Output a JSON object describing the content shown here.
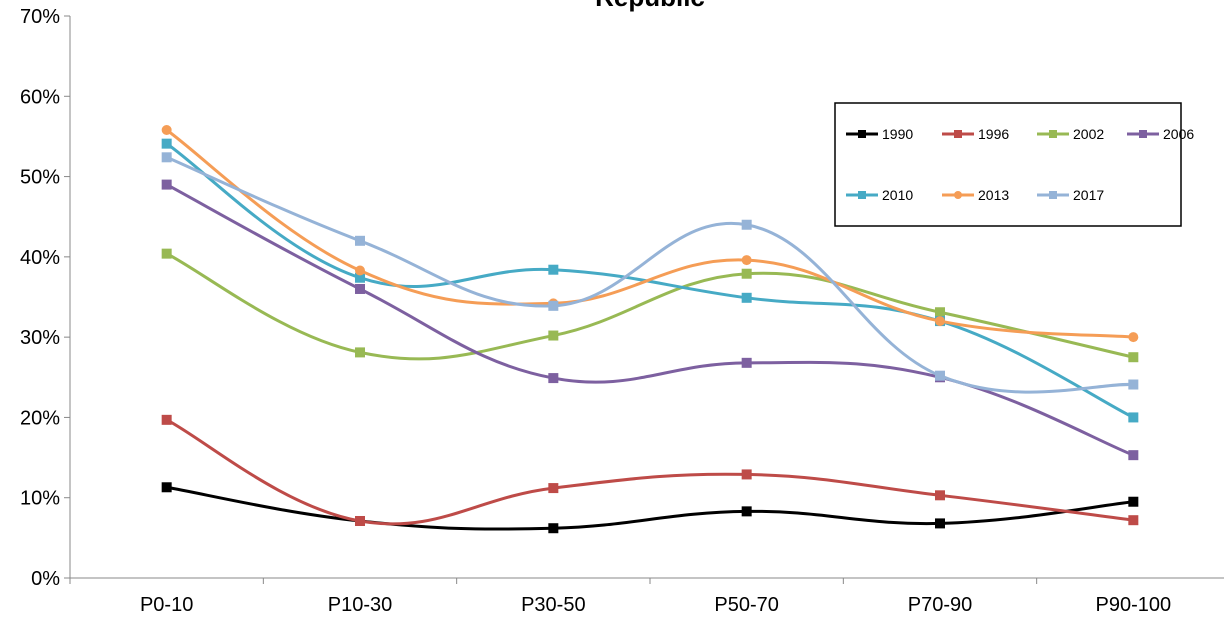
{
  "chart_data": {
    "type": "line",
    "title": "Republic",
    "categories": [
      "P0-10",
      "P10-30",
      "P30-50",
      "P50-70",
      "P70-90",
      "P90-100"
    ],
    "ylim": [
      0,
      70
    ],
    "yticks": [
      0,
      10,
      20,
      30,
      40,
      50,
      60,
      70
    ],
    "ytick_labels": [
      "0%",
      "10%",
      "20%",
      "30%",
      "40%",
      "50%",
      "60%",
      "70%"
    ],
    "grid": false,
    "legend_placement": "top-right",
    "series": [
      {
        "name": "1990",
        "color": "#000000",
        "marker": "square",
        "values": [
          11.3,
          7.1,
          6.2,
          8.3,
          6.8,
          9.5
        ]
      },
      {
        "name": "1996",
        "color": "#be4b48",
        "marker": "square",
        "values": [
          19.7,
          7.1,
          11.2,
          12.9,
          10.3,
          7.2
        ]
      },
      {
        "name": "2002",
        "color": "#98b954",
        "marker": "square",
        "values": [
          40.4,
          28.1,
          30.2,
          37.9,
          33.1,
          27.5
        ]
      },
      {
        "name": "2006",
        "color": "#7d60a0",
        "marker": "square",
        "values": [
          49.0,
          36.0,
          24.9,
          26.8,
          25.0,
          15.3
        ]
      },
      {
        "name": "2010",
        "color": "#46aac5",
        "marker": "square",
        "values": [
          54.1,
          37.4,
          38.4,
          34.9,
          32.0,
          20.0
        ]
      },
      {
        "name": "2013",
        "color": "#f59d56",
        "marker": "circle",
        "values": [
          55.8,
          38.3,
          34.2,
          39.6,
          32.0,
          30.0
        ]
      },
      {
        "name": "2017",
        "color": "#95b3d7",
        "marker": "square",
        "values": [
          52.4,
          42.0,
          33.9,
          44.0,
          25.2,
          24.1
        ]
      }
    ]
  }
}
